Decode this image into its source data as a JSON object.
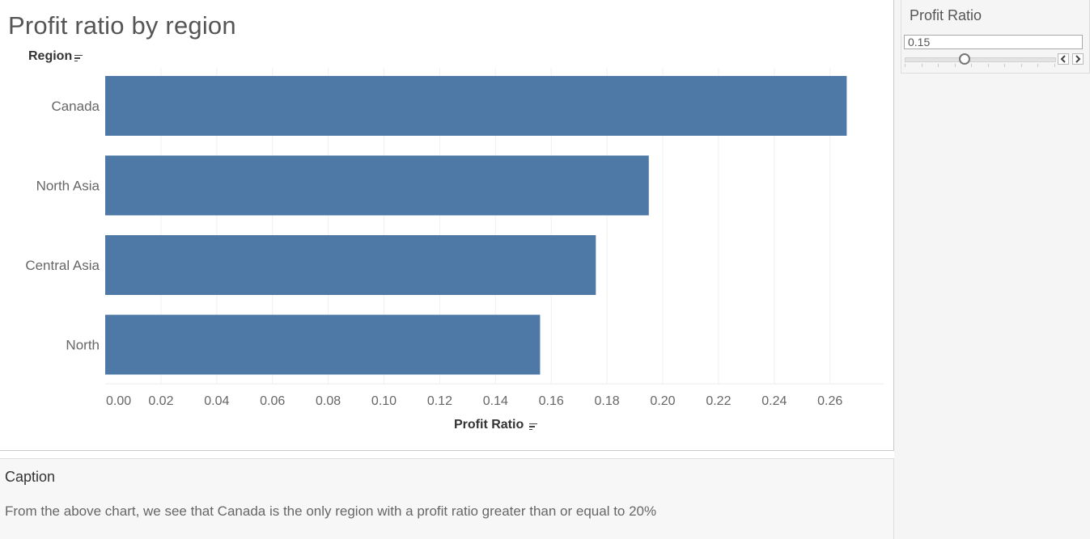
{
  "sheet": {
    "title": "Profit ratio by region",
    "row_header": "Region",
    "axis_title": "Profit Ratio"
  },
  "chart_data": {
    "type": "bar",
    "orientation": "horizontal",
    "categories": [
      "Canada",
      "North Asia",
      "Central Asia",
      "North"
    ],
    "values": [
      0.266,
      0.195,
      0.176,
      0.156
    ],
    "x_ticks": [
      "0.00",
      "0.02",
      "0.04",
      "0.06",
      "0.08",
      "0.10",
      "0.12",
      "0.14",
      "0.16",
      "0.18",
      "0.20",
      "0.22",
      "0.24",
      "0.26"
    ],
    "xlim": [
      0.0,
      0.28
    ],
    "ylabel": "Region",
    "xlabel": "Profit Ratio",
    "grid": "vertical",
    "bar_color": "#4e79a7"
  },
  "parameter": {
    "title": "Profit Ratio",
    "value": "0.15",
    "slider_fraction": 0.4,
    "prev_icon": "chevron-left-icon",
    "next_icon": "chevron-right-icon"
  },
  "caption": {
    "title": "Caption",
    "text": "From the above chart, we see that Canada is the only region with a profit ratio greater than or equal to 20%"
  }
}
